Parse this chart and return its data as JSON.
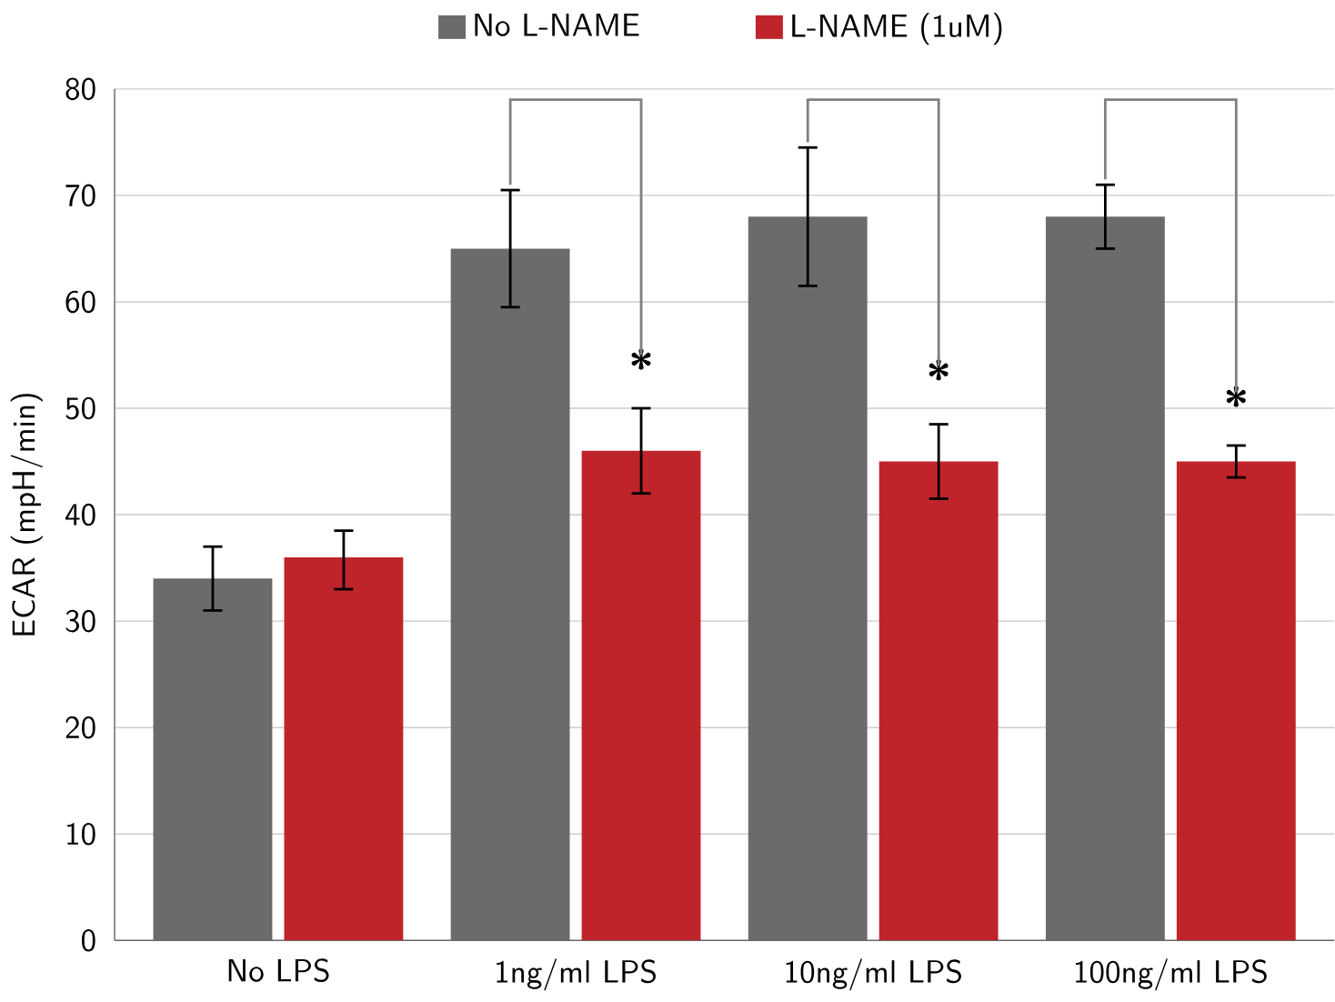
{
  "chart_data": {
    "type": "bar",
    "ylabel": "ECAR (mpH/min)",
    "categories": [
      "No LPS",
      "1ng/ml LPS",
      "10ng/ml LPS",
      "100ng/ml LPS"
    ],
    "series": [
      {
        "name": "No L-NAME",
        "color": "#6b6b6b",
        "values": [
          34,
          65,
          68,
          68
        ],
        "errors": [
          [
            31,
            37
          ],
          [
            59.5,
            70.5
          ],
          [
            61.5,
            74.5
          ],
          [
            65,
            71
          ]
        ]
      },
      {
        "name": "L-NAME (1uM)",
        "color": "#c0242b",
        "values": [
          36,
          46,
          45,
          45
        ],
        "errors": [
          [
            33,
            38.5
          ],
          [
            42,
            50
          ],
          [
            41.5,
            48.5
          ],
          [
            43.5,
            46.5
          ]
        ]
      }
    ],
    "ylim": [
      0,
      80
    ],
    "yticks": [
      0,
      10,
      20,
      30,
      40,
      50,
      60,
      70,
      80
    ],
    "grid": "y",
    "legend": "top",
    "annotations": [
      {
        "text": "*",
        "x": "1ng/ml LPS",
        "y": 52
      },
      {
        "text": "*",
        "x": "10ng/ml LPS",
        "y": 51
      },
      {
        "text": "*",
        "x": "100ng/ml LPS",
        "y": 48.5
      }
    ]
  }
}
